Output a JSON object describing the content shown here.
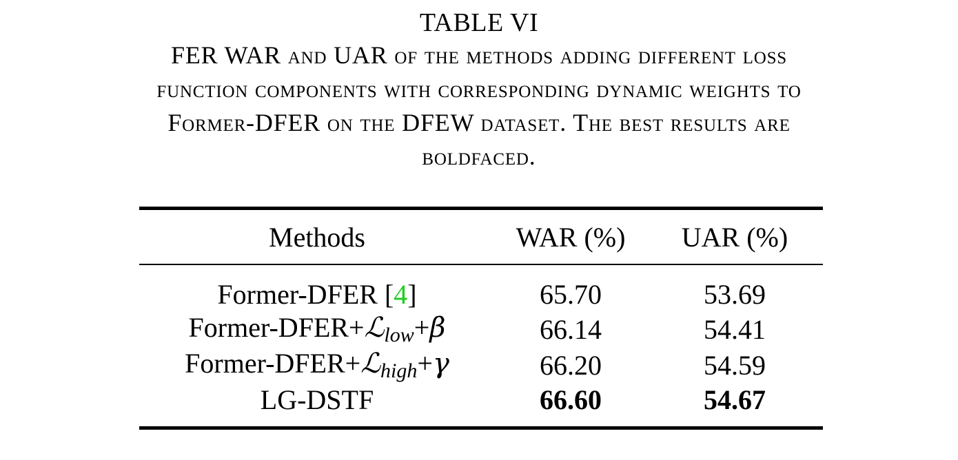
{
  "caption": {
    "table_number": "TABLE VI",
    "lines": [
      "FER WAR and UAR of the methods adding different loss",
      "function components with corresponding dynamic weights to",
      "Former-DFER on the DFEW dataset. The best results are",
      "boldfaced."
    ]
  },
  "table": {
    "headers": [
      "Methods",
      "WAR (%)",
      "UAR (%)"
    ],
    "rows": [
      {
        "method": "Former-DFER",
        "ref_open": "[",
        "ref": "4",
        "ref_close": "]",
        "war": "65.70",
        "uar": "53.69"
      },
      {
        "method": "Former-DFER+",
        "loss_symbol": "ℒ",
        "loss_sub": "low",
        "plus": "+",
        "weight": "β",
        "war": "66.14",
        "uar": "54.41"
      },
      {
        "method": "Former-DFER+",
        "loss_symbol": "ℒ",
        "loss_sub": "high",
        "plus": "+",
        "weight": "γ",
        "war": "66.20",
        "uar": "54.59"
      },
      {
        "method": "LG-DSTF",
        "war": "66.60",
        "uar": "54.67",
        "best": true
      }
    ]
  },
  "colors": {
    "text": "#000000",
    "citation_link": "#22cc22",
    "background": "#ffffff"
  }
}
